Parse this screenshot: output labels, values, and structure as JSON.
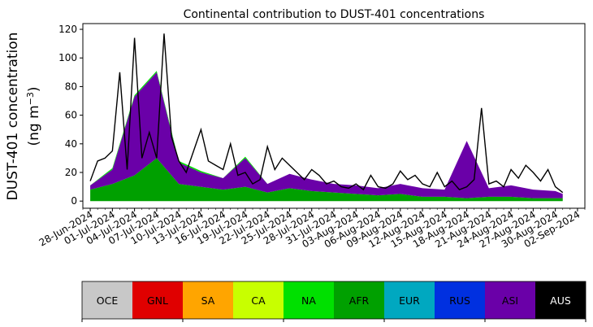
{
  "chart_data": {
    "type": "area",
    "title": "Continental contribution to DUST-401 concentrations",
    "ylabel_line1": "DUST-401 concentration",
    "ylabel_line2_prefix": "(ng m",
    "ylabel_line2_sup": "−3",
    "ylabel_line2_suffix": ")",
    "ylim": [
      -5,
      124
    ],
    "yticks": [
      0,
      20,
      40,
      60,
      80,
      100,
      120
    ],
    "xlim": [
      "2024-06-27",
      "2024-09-03"
    ],
    "xtick_dates": [
      "2024-06-28",
      "2024-07-01",
      "2024-07-04",
      "2024-07-07",
      "2024-07-10",
      "2024-07-13",
      "2024-07-16",
      "2024-07-19",
      "2024-07-22",
      "2024-07-25",
      "2024-07-28",
      "2024-07-31",
      "2024-08-03",
      "2024-08-06",
      "2024-08-09",
      "2024-08-12",
      "2024-08-15",
      "2024-08-18",
      "2024-08-21",
      "2024-08-24",
      "2024-08-27",
      "2024-08-30",
      "2024-09-02"
    ],
    "xtick_labels": [
      "28-Jun-2024",
      "01-Jul-2024",
      "04-Jul-2024",
      "07-Jul-2024",
      "10-Jul-2024",
      "13-Jul-2024",
      "16-Jul-2024",
      "19-Jul-2024",
      "22-Jul-2024",
      "25-Jul-2024",
      "28-Jul-2024",
      "31-Jul-2024",
      "03-Aug-2024",
      "06-Aug-2024",
      "09-Aug-2024",
      "12-Aug-2024",
      "15-Aug-2024",
      "18-Aug-2024",
      "21-Aug-2024",
      "24-Aug-2024",
      "27-Aug-2024",
      "30-Aug-2024",
      "02-Sep-2024"
    ],
    "total_x": [
      "2024-06-28",
      "2024-06-29",
      "2024-06-30",
      "2024-07-01",
      "2024-07-02",
      "2024-07-03",
      "2024-07-04",
      "2024-07-05",
      "2024-07-06",
      "2024-07-07",
      "2024-07-08",
      "2024-07-09",
      "2024-07-10",
      "2024-07-11",
      "2024-07-12",
      "2024-07-13",
      "2024-07-14",
      "2024-07-15",
      "2024-07-16",
      "2024-07-17",
      "2024-07-18",
      "2024-07-19",
      "2024-07-20",
      "2024-07-21",
      "2024-07-22",
      "2024-07-23",
      "2024-07-24",
      "2024-07-25",
      "2024-07-26",
      "2024-07-27",
      "2024-07-28",
      "2024-07-29",
      "2024-07-30",
      "2024-07-31",
      "2024-08-01",
      "2024-08-02",
      "2024-08-03",
      "2024-08-04",
      "2024-08-05",
      "2024-08-06",
      "2024-08-07",
      "2024-08-08",
      "2024-08-09",
      "2024-08-10",
      "2024-08-11",
      "2024-08-12",
      "2024-08-13",
      "2024-08-14",
      "2024-08-15",
      "2024-08-16",
      "2024-08-17",
      "2024-08-18",
      "2024-08-19",
      "2024-08-20",
      "2024-08-21",
      "2024-08-22",
      "2024-08-23",
      "2024-08-24",
      "2024-08-25",
      "2024-08-26",
      "2024-08-27",
      "2024-08-28",
      "2024-08-29",
      "2024-08-30",
      "2024-08-31"
    ],
    "total_values": [
      14,
      28,
      30,
      35,
      90,
      22,
      114,
      30,
      48,
      30,
      117,
      45,
      28,
      20,
      35,
      50,
      28,
      25,
      22,
      40,
      18,
      20,
      12,
      15,
      38,
      22,
      30,
      25,
      20,
      15,
      22,
      18,
      12,
      14,
      10,
      9,
      12,
      8,
      18,
      10,
      9,
      12,
      21,
      15,
      18,
      12,
      10,
      20,
      10,
      14,
      8,
      10,
      15,
      65,
      12,
      14,
      10,
      22,
      16,
      25,
      20,
      14,
      22,
      10,
      6
    ],
    "region_x": [
      "2024-06-28",
      "2024-07-01",
      "2024-07-04",
      "2024-07-07",
      "2024-07-10",
      "2024-07-13",
      "2024-07-16",
      "2024-07-19",
      "2024-07-22",
      "2024-07-25",
      "2024-07-28",
      "2024-07-31",
      "2024-08-03",
      "2024-08-06",
      "2024-08-09",
      "2024-08-12",
      "2024-08-15",
      "2024-08-18",
      "2024-08-21",
      "2024-08-24",
      "2024-08-27",
      "2024-08-30",
      "2024-08-31"
    ],
    "series": [
      {
        "name": "AFR",
        "color": "#00a000",
        "values": [
          8,
          12,
          18,
          30,
          12,
          10,
          8,
          10,
          6,
          9,
          7,
          6,
          5,
          4,
          5,
          3,
          3,
          2,
          3,
          3,
          2,
          2,
          2
        ]
      },
      {
        "name": "ASI",
        "color": "#6a00a8",
        "values": [
          3,
          10,
          55,
          60,
          15,
          10,
          8,
          20,
          6,
          10,
          8,
          6,
          6,
          5,
          7,
          6,
          5,
          40,
          6,
          8,
          6,
          5,
          3
        ]
      },
      {
        "name": "NA",
        "color": "#00e000",
        "values": [
          0,
          1,
          1,
          1,
          1,
          1,
          0,
          1,
          0,
          0,
          0,
          0,
          0,
          0,
          0,
          0,
          0,
          0,
          0,
          0,
          0,
          0,
          0
        ]
      }
    ],
    "legend": [
      {
        "label": "OCE",
        "color": "#c8c8c8",
        "text_color": "#000000"
      },
      {
        "label": "GNL",
        "color": "#e00000",
        "text_color": "#000000"
      },
      {
        "label": "SA",
        "color": "#ffa500",
        "text_color": "#000000"
      },
      {
        "label": "CA",
        "color": "#c8ff00",
        "text_color": "#000000"
      },
      {
        "label": "NA",
        "color": "#00e000",
        "text_color": "#000000"
      },
      {
        "label": "AFR",
        "color": "#00a000",
        "text_color": "#000000"
      },
      {
        "label": "EUR",
        "color": "#00a8c0",
        "text_color": "#000000"
      },
      {
        "label": "RUS",
        "color": "#0030e0",
        "text_color": "#000000"
      },
      {
        "label": "ASI",
        "color": "#6a00a8",
        "text_color": "#000000"
      },
      {
        "label": "AUS",
        "color": "#000000",
        "text_color": "#ffffff"
      }
    ]
  }
}
